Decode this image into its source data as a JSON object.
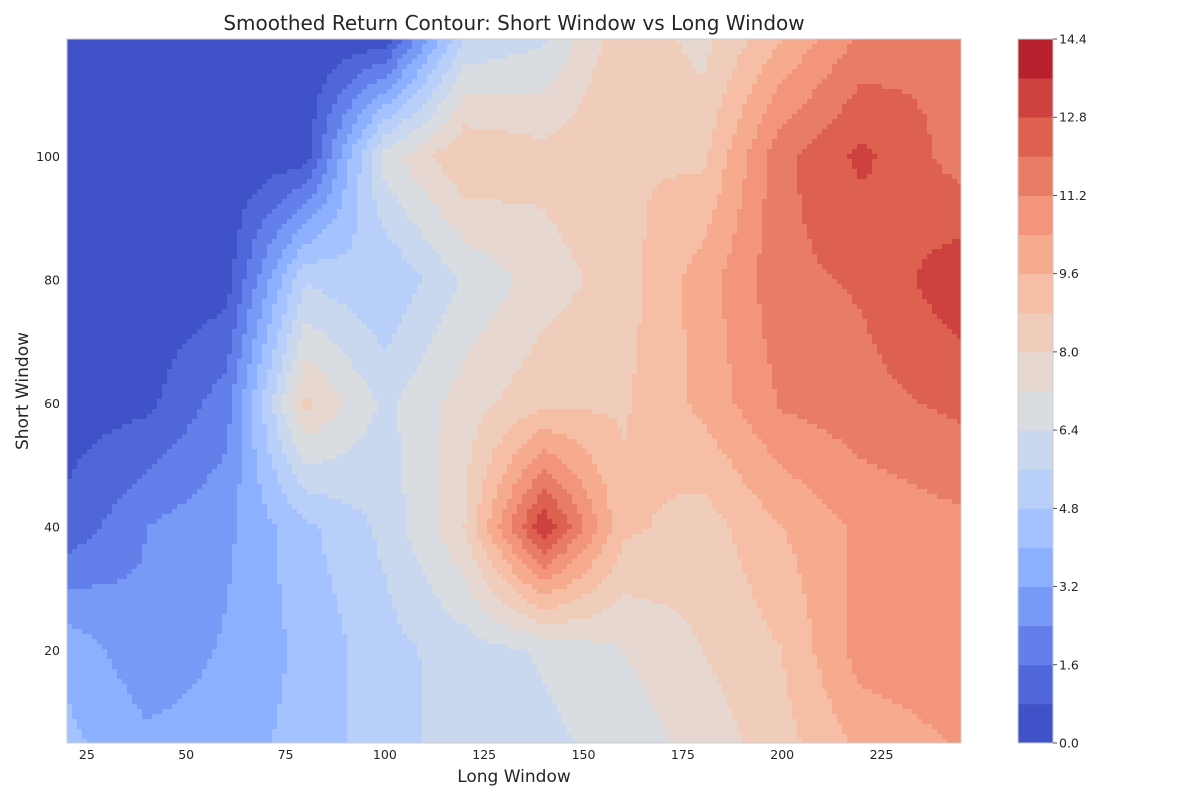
{
  "chart_data": {
    "type": "heatmap",
    "subtype": "filled-contour",
    "title": "Smoothed Return Contour: Short Window vs Long Window",
    "xlabel": "Long Window",
    "ylabel": "Short Window",
    "xlim": [
      20,
      245
    ],
    "ylim": [
      5,
      119
    ],
    "xticks": [
      25,
      50,
      75,
      100,
      125,
      150,
      175,
      200,
      225
    ],
    "yticks": [
      20,
      40,
      60,
      80,
      100
    ],
    "grid": false,
    "colorbar": {
      "colormap": "coolwarm",
      "min": 0.0,
      "max": 14.4,
      "ticks": [
        0.0,
        1.6,
        3.2,
        4.8,
        6.4,
        8.0,
        9.6,
        11.2,
        12.8,
        14.4
      ],
      "levels": [
        0.0,
        0.8,
        1.6,
        2.4,
        3.2,
        4.0,
        4.8,
        5.6,
        6.4,
        7.2,
        8.0,
        8.8,
        9.6,
        10.4,
        11.2,
        12.0,
        12.8,
        13.6,
        14.4
      ],
      "level_colors": [
        "#3f52c7",
        "#5067d9",
        "#6380ea",
        "#779af6",
        "#8cafff",
        "#a3c2ff",
        "#b8d0f9",
        "#cad8ef",
        "#d9dce1",
        "#e6d8d0",
        "#f0cdbb",
        "#f5bea5",
        "#f6ab8e",
        "#f2957a",
        "#e97c65",
        "#de6150",
        "#cd423f",
        "#b8202e"
      ]
    },
    "description_of_regions": "low returns (0-1) in the upper-left where short window exceeds long window; returns rise toward the right; peaks near long=140 short=41, long=215 short=93, long=245 short=73",
    "z_samples": {
      "x": [
        20,
        40,
        60,
        80,
        100,
        120,
        140,
        160,
        180,
        200,
        220,
        245
      ],
      "y": [
        5,
        20,
        40,
        60,
        80,
        100,
        119
      ],
      "values": [
        [
          4.2,
          3.4,
          3.6,
          4.3,
          5.3,
          5.9,
          6.2,
          6.7,
          7.5,
          8.5,
          9.8,
          10.5
        ],
        [
          3.8,
          2.6,
          3.3,
          4.2,
          5.3,
          6.0,
          6.5,
          7.2,
          8.0,
          8.8,
          10.8,
          11.0
        ],
        [
          1.0,
          2.4,
          3.0,
          4.6,
          5.8,
          8.0,
          13.5,
          9.0,
          8.4,
          9.6,
          10.6,
          11.0
        ],
        [
          0.4,
          0.6,
          2.0,
          8.2,
          6.2,
          7.6,
          8.6,
          8.7,
          9.8,
          11.3,
          11.7,
          12.2
        ],
        [
          0.2,
          0.2,
          0.4,
          5.5,
          4.8,
          6.5,
          7.6,
          8.4,
          10.0,
          11.8,
          12.1,
          13.4
        ],
        [
          0.1,
          0.1,
          0.1,
          0.4,
          6.8,
          8.8,
          8.3,
          8.8,
          8.6,
          11.8,
          13.0,
          11.6
        ],
        [
          0.1,
          0.1,
          0.1,
          0.1,
          0.3,
          5.7,
          6.3,
          8.6,
          7.7,
          9.6,
          11.4,
          12.0
        ]
      ]
    }
  }
}
